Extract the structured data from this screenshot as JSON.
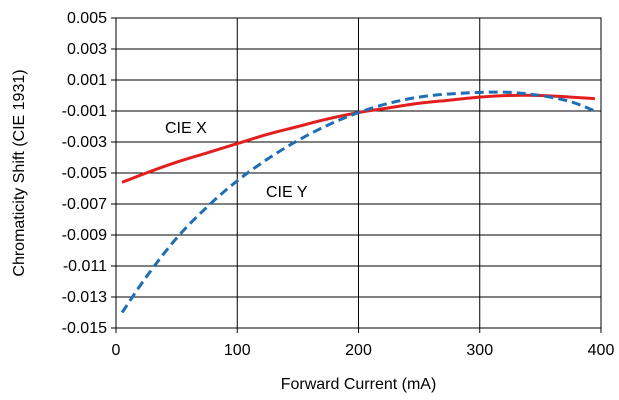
{
  "chart_data": {
    "type": "line",
    "title": "",
    "xlabel": "Forward Current (mA)",
    "ylabel": "Chromaticity Shift (CIE 1931)",
    "xlim": [
      0,
      400
    ],
    "ylim": [
      -0.015,
      0.005
    ],
    "xticks": [
      "0",
      "100",
      "200",
      "300",
      "400"
    ],
    "yticks": [
      "0.005",
      "0.003",
      "0.001",
      "-0.001",
      "-0.003",
      "-0.005",
      "-0.007",
      "-0.009",
      "-0.011",
      "-0.013",
      "-0.015"
    ],
    "grid": true,
    "series": [
      {
        "name": "CIE X",
        "color": "#e41e1e",
        "dash": "solid",
        "x": [
          5,
          25,
          50,
          75,
          100,
          125,
          150,
          175,
          200,
          225,
          250,
          275,
          300,
          325,
          350,
          375,
          395
        ],
        "y": [
          -0.0056,
          -0.005,
          -0.0043,
          -0.0037,
          -0.0031,
          -0.0025,
          -0.002,
          -0.0015,
          -0.0011,
          -0.0008,
          -0.0005,
          -0.0003,
          -0.0001,
          0.0,
          0.0,
          -0.0001,
          -0.0002
        ]
      },
      {
        "name": "CIE Y",
        "color": "#1f6eb4",
        "dash": "dashed",
        "x": [
          5,
          25,
          50,
          75,
          100,
          125,
          150,
          175,
          200,
          225,
          250,
          275,
          300,
          325,
          350,
          375,
          395
        ],
        "y": [
          -0.014,
          -0.0117,
          -0.0092,
          -0.0072,
          -0.0055,
          -0.0041,
          -0.0029,
          -0.0019,
          -0.0011,
          -0.0005,
          -0.0001,
          0.0001,
          0.0002,
          0.0002,
          0.0,
          -0.0004,
          -0.001
        ]
      }
    ]
  }
}
